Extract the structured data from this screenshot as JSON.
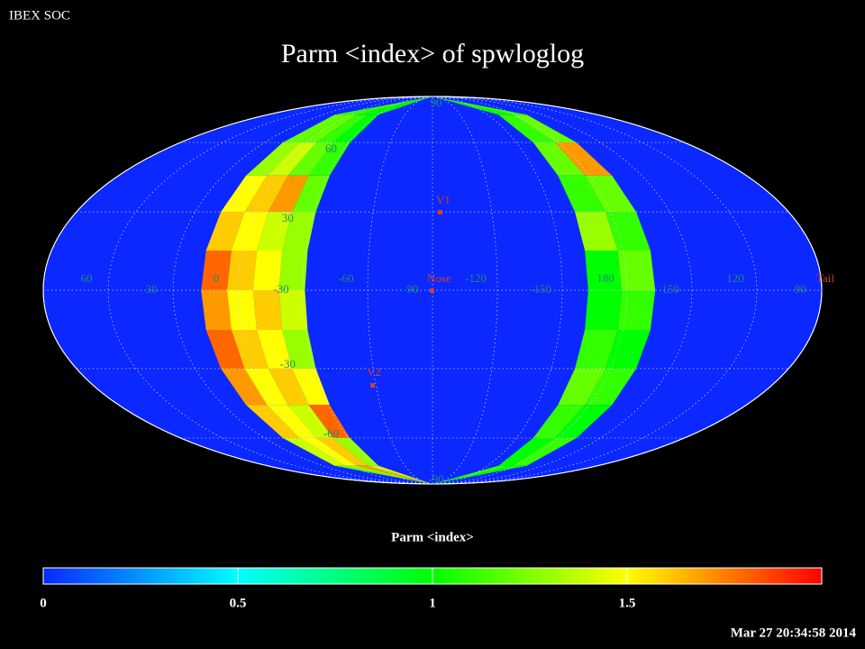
{
  "header": "IBEX SOC",
  "title": "Parm  <index> of spwloglog",
  "longitude_labels": [
    60,
    30,
    0,
    -30,
    -60,
    -90,
    -120,
    -150,
    180,
    150,
    120,
    90
  ],
  "latitude_labels": [
    90,
    60,
    30,
    -30,
    -60,
    -90
  ],
  "markers": {
    "v1": "V1",
    "nose": "Nose",
    "v2": "V2",
    "tail": "Tail"
  },
  "map": {
    "left_band": [
      [
        1.1,
        1.1,
        1.0,
        1.0
      ],
      [
        1.2,
        1.2,
        1.1,
        1.0
      ],
      [
        1.3,
        1.4,
        1.2,
        1.1
      ],
      [
        1.5,
        1.6,
        1.7,
        1.2
      ],
      [
        1.6,
        1.5,
        1.4,
        1.3
      ],
      [
        1.8,
        1.6,
        1.5,
        1.3
      ],
      [
        1.7,
        1.5,
        1.6,
        1.4
      ],
      [
        1.8,
        1.6,
        1.5,
        1.3
      ],
      [
        1.7,
        1.5,
        1.6,
        1.5
      ],
      [
        1.6,
        1.5,
        1.4,
        1.8
      ],
      [
        1.4,
        1.5,
        1.6,
        1.3
      ],
      [
        1.2,
        1.3,
        1.7,
        1.4
      ]
    ],
    "right_band": [
      [
        1.0,
        1.1
      ],
      [
        1.1,
        1.2
      ],
      [
        1.2,
        1.7
      ],
      [
        1.1,
        1.2
      ],
      [
        1.3,
        1.1
      ],
      [
        1.0,
        1.2
      ],
      [
        1.0,
        1.1
      ],
      [
        1.1,
        1.0
      ],
      [
        1.2,
        1.1
      ],
      [
        1.1,
        1.0
      ],
      [
        1.0,
        1.1
      ],
      [
        1.1,
        1.0
      ]
    ]
  },
  "colorbar": {
    "label": "Parm  <index>",
    "lim": [
      0,
      2
    ],
    "ticks": [
      0,
      0.5,
      1,
      1.5
    ]
  },
  "timestamp": "Mar 27 20:34:58 2014"
}
